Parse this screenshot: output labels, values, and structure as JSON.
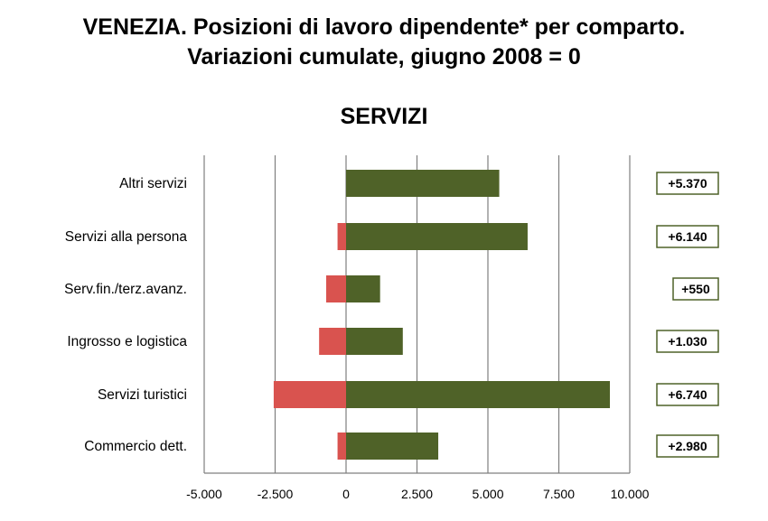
{
  "title_line1": "VENEZIA. Posizioni di lavoro dipendente* per comparto.",
  "title_line2": "Variazioni cumulate, giugno 2008 = 0",
  "colors": {
    "positive": "#4f6228",
    "negative": "#d9534f",
    "label_border": "#4f6228",
    "grid": "#7f7f7f"
  },
  "chart_data": {
    "type": "bar",
    "orientation": "horizontal",
    "stacked": true,
    "title": "SERVIZI",
    "categories": [
      "Altri servizi",
      "Servizi alla persona",
      "Serv.fin./terz.avanz.",
      "Ingrosso e logistica",
      "Servizi turistici",
      "Commercio dett."
    ],
    "series": [
      {
        "values": [
          0,
          -300,
          -700,
          -950,
          -2550,
          -300
        ]
      },
      {
        "values": [
          5400,
          6400,
          1200,
          2000,
          9300,
          3250
        ]
      }
    ],
    "net_labels": [
      "+5.370",
      "+6.140",
      "+550",
      "+1.030",
      "+6.740",
      "+2.980"
    ],
    "xlim": [
      -5000,
      10000
    ],
    "xticks": [
      -5000,
      -2500,
      0,
      2500,
      5000,
      7500,
      10000
    ],
    "xtick_labels": [
      "-5.000",
      "-2.500",
      "0",
      "2.500",
      "5.000",
      "7.500",
      "10.000"
    ],
    "grid": true
  }
}
